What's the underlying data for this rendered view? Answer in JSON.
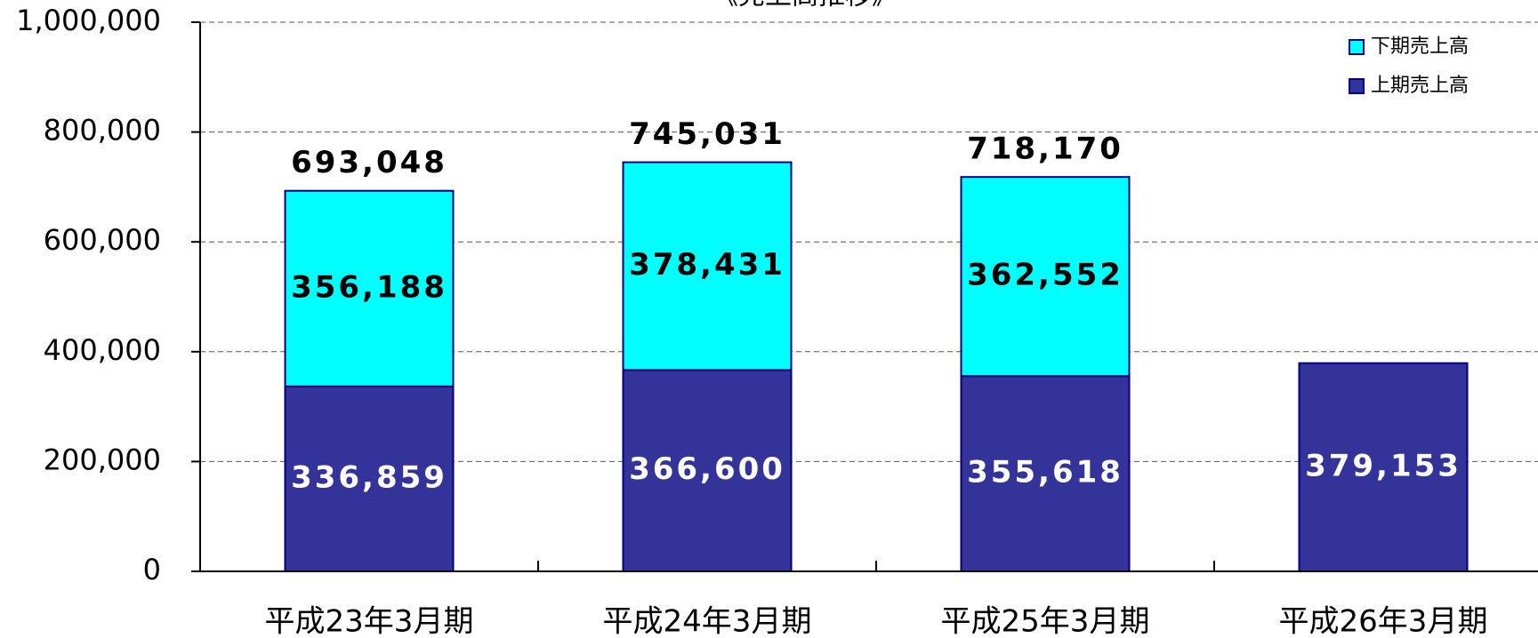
{
  "chart_data": {
    "type": "stacked_bar",
    "title": "《売上高推移》",
    "categories": [
      "平成23年3月期",
      "平成24年3月期",
      "平成25年3月期",
      "平成26年3月期"
    ],
    "series": [
      {
        "name": "上期売上高",
        "color": "#333399",
        "values": [
          336859,
          366600,
          355618,
          379153
        ],
        "value_labels": [
          "336,859",
          "366,600",
          "355,618",
          "379,153"
        ]
      },
      {
        "name": "下期売上高",
        "color": "#00ffff",
        "values": [
          356188,
          378431,
          362552,
          null
        ],
        "value_labels": [
          "356,188",
          "378,431",
          "362,552",
          null
        ]
      }
    ],
    "totals": [
      693048,
      745031,
      718170,
      null
    ],
    "total_labels": [
      "693,048",
      "745,031",
      "718,170",
      null
    ],
    "ylim": [
      0,
      1000000
    ],
    "yticks": [
      0,
      {
        "value": 200000,
        "label": "200,000"
      },
      {
        "value": 400000,
        "label": "400,000"
      },
      {
        "value": 600000,
        "label": "600,000"
      },
      {
        "value": 800000,
        "label": "800,000"
      },
      {
        "value": 1000000,
        "label": "1,000,000"
      }
    ],
    "grid": true,
    "legend": "upper right"
  }
}
